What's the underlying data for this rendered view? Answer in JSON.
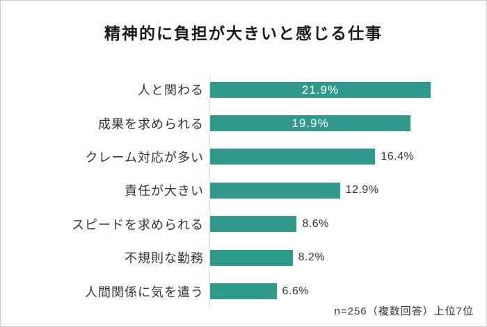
{
  "title": "精神的に負担が大きいと感じる仕事",
  "footnote": "n=256（複数回答）上位7位",
  "colors": {
    "bar": "#2F9A8C",
    "axis": "#D9D9D9",
    "value_label_inside": "#FFFFFF",
    "text": "#333333",
    "title_text": "#1A1A1A",
    "frame_border": "#C9C9C9",
    "background": "#FFFFFF"
  },
  "chart_data": {
    "type": "bar",
    "orientation": "horizontal",
    "title": "精神的に負担が大きいと感じる仕事",
    "xlabel": "",
    "ylabel": "",
    "categories": [
      "人と関わる",
      "成果を求められる",
      "クレーム対応が多い",
      "責任が大きい",
      "スピードを求められる",
      "不規則な勤務",
      "人間関係に気を遣う"
    ],
    "values": [
      21.9,
      19.9,
      16.4,
      12.9,
      8.6,
      8.2,
      6.6
    ],
    "value_labels": [
      "21.9%",
      "19.9%",
      "16.4%",
      "12.9%",
      "8.6%",
      "8.2%",
      "6.6%"
    ],
    "value_label_positions": [
      "inside",
      "inside",
      "outside",
      "outside",
      "outside",
      "outside",
      "outside"
    ],
    "xlim": [
      0,
      25.15
    ],
    "grid": false,
    "legend": false,
    "annotation": "n=256（複数回答）上位7位"
  }
}
